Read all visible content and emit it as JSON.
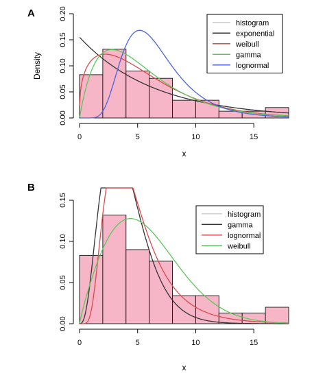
{
  "chart_data": [
    {
      "type": "bar",
      "panel_label": "A",
      "xlabel": "x",
      "ylabel": "Density",
      "xlim": [
        0,
        18
      ],
      "ylim": [
        0,
        0.2
      ],
      "xticks": [
        0,
        5,
        10,
        15
      ],
      "yticks": [
        0.0,
        0.05,
        0.1,
        0.15,
        0.2
      ],
      "ytick_labels": [
        "0.00",
        "0.05",
        "0.10",
        "0.15",
        "0.20"
      ],
      "grid": false,
      "legend_position": "top-right",
      "histogram": {
        "bin_edges": [
          0,
          2,
          4,
          6,
          8,
          10,
          12,
          14,
          16,
          18
        ],
        "values": [
          0.083,
          0.132,
          0.09,
          0.076,
          0.034,
          0.034,
          0.013,
          0.013,
          0.02
        ],
        "fill": "#f7b6c8",
        "stroke": "#222222"
      },
      "series": [
        {
          "name": "histogram",
          "color": "#d0d0d0",
          "type": "legend-only"
        },
        {
          "name": "exponential",
          "color": "#333333",
          "dist": "exponential",
          "rate": 0.155
        },
        {
          "name": "weibull",
          "color": "#d94a4a",
          "dist": "weibull",
          "shape": 1.35,
          "scale": 6.0
        },
        {
          "name": "gamma",
          "color": "#5cc65c",
          "dist": "gamma",
          "shape": 2.0,
          "scale": 2.8
        },
        {
          "name": "lognormal",
          "color": "#4a63d9",
          "dist": "lognormal",
          "meanlog": 1.82,
          "sdlog": 0.42
        }
      ]
    },
    {
      "type": "bar",
      "panel_label": "B",
      "xlabel": "x",
      "ylabel": "",
      "xlim": [
        0,
        18
      ],
      "ylim": [
        0,
        0.15
      ],
      "xticks": [
        0,
        5,
        10,
        15
      ],
      "yticks": [
        0.0,
        0.05,
        0.1,
        0.15
      ],
      "ytick_labels": [
        "0.00",
        "0.05",
        "0.10",
        "0.15"
      ],
      "grid": false,
      "legend_position": "top-right",
      "histogram": {
        "bin_edges": [
          0,
          2,
          4,
          6,
          8,
          10,
          12,
          14,
          16,
          18
        ],
        "values": [
          0.083,
          0.132,
          0.09,
          0.076,
          0.034,
          0.034,
          0.013,
          0.013,
          0.02
        ],
        "fill": "#f7b6c8",
        "stroke": "#222222"
      },
      "series": [
        {
          "name": "histogram",
          "color": "#d0d0d0",
          "type": "legend-only"
        },
        {
          "name": "gamma",
          "color": "#333333",
          "dist": "gamma",
          "shape": 4.0,
          "scale": 1.0
        },
        {
          "name": "lognormal",
          "color": "#d94a4a",
          "dist": "lognormal",
          "meanlog": 1.45,
          "sdlog": 0.52
        },
        {
          "name": "weibull",
          "color": "#5cc65c",
          "dist": "weibull",
          "shape": 1.9,
          "scale": 6.5
        }
      ]
    }
  ]
}
